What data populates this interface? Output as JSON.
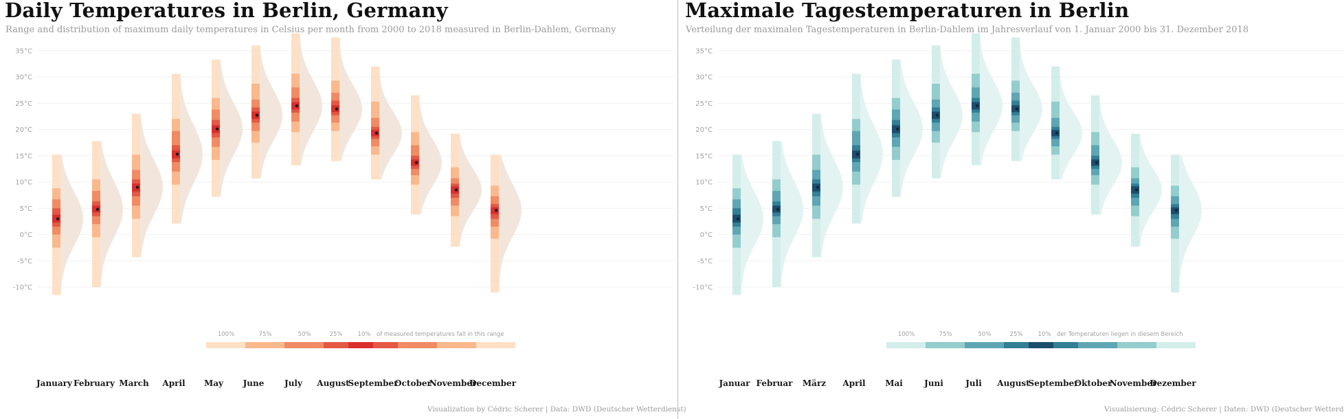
{
  "panels": [
    {
      "title": "Daily Temperatures in Berlin, Germany",
      "subtitle": "Range and distribution of maximum daily temperatures in Celsius per month from 2000 to 2018 measured in Berlin-Dahlem, Germany",
      "caption": "Visualization by Cédric Scherer  |  Data: DWD (Deutscher Wetterdienst)",
      "legend": {
        "labels": [
          "100%",
          "75%",
          "50%",
          "25%",
          "10%"
        ],
        "text": "of measured temperatures fall in this range"
      },
      "colors": {
        "ranges": [
          "#fde0c5",
          "#f9b98c",
          "#f08b63",
          "#e45844",
          "#d9302c"
        ],
        "density": "#f2e6dc",
        "median": "#1a1a1a"
      }
    },
    {
      "title": "Maximale Tagestemperaturen in Berlin",
      "subtitle": "Verteilung der maximalen Tagestemperaturen in Berlin-Dahlem im Jahresverlauf von 1. Januar 2000 bis 31. Dezember 2018",
      "caption": "Visualisierung: Cédric Scherer  |  Daten: DWD (Deutscher Wetterdienst)",
      "legend": {
        "labels": [
          "100%",
          "75%",
          "50%",
          "25%",
          "10%"
        ],
        "text": "der Temperaturen liegen in diesem Bereich"
      },
      "colors": {
        "ranges": [
          "#d3eeea",
          "#93cdcd",
          "#5ea6b3",
          "#327f96",
          "#1c4e6e"
        ],
        "density": "#e3f3f1",
        "median": "#0f2a3c"
      }
    }
  ],
  "chart_data": [
    {
      "type": "interval-density",
      "title": "Daily Temperatures in Berlin, Germany",
      "categories": [
        "January",
        "February",
        "March",
        "April",
        "May",
        "June",
        "July",
        "August",
        "September",
        "October",
        "November",
        "December"
      ],
      "y_tick_labels": [
        "-10°C",
        "-5°C",
        "0°C",
        "5°C",
        "10°C",
        "15°C",
        "20°C",
        "25°C",
        "30°C",
        "35°C"
      ],
      "ylim": [
        -11.5,
        38.5
      ],
      "grid": true,
      "interval_levels": [
        "100%",
        "75%",
        "50%",
        "25%",
        "10%"
      ],
      "series": [
        {
          "category": "January",
          "median": 3,
          "intervals": {
            "100%": [
              -11.5,
              15.2
            ],
            "75%": [
              -2.5,
              8.8
            ],
            "50%": [
              0,
              6.7
            ],
            "25%": [
              1.5,
              5
            ],
            "10%": [
              2.3,
              3.8
            ]
          }
        },
        {
          "category": "February",
          "median": 4.8,
          "intervals": {
            "100%": [
              -10,
              17.8
            ],
            "75%": [
              -0.5,
              10.5
            ],
            "50%": [
              2,
              8.3
            ],
            "25%": [
              3.5,
              6.3
            ],
            "10%": [
              4.2,
              5.5
            ]
          }
        },
        {
          "category": "March",
          "median": 9,
          "intervals": {
            "100%": [
              -4.3,
              23
            ],
            "75%": [
              3,
              15.2
            ],
            "50%": [
              5.5,
              12.3
            ],
            "25%": [
              7.3,
              10.5
            ],
            "10%": [
              8.2,
              9.7
            ]
          }
        },
        {
          "category": "April",
          "median": 15.3,
          "intervals": {
            "100%": [
              2.1,
              30.6
            ],
            "75%": [
              9.5,
              22
            ],
            "50%": [
              12,
              19.7
            ],
            "25%": [
              13.8,
              17
            ],
            "10%": [
              14.5,
              16
            ]
          }
        },
        {
          "category": "May",
          "median": 20.1,
          "intervals": {
            "100%": [
              7.2,
              33.3
            ],
            "75%": [
              14.2,
              26
            ],
            "50%": [
              16.7,
              23.8
            ],
            "25%": [
              18.5,
              21.8
            ],
            "10%": [
              19.3,
              20.8
            ]
          }
        },
        {
          "category": "June",
          "median": 22.7,
          "intervals": {
            "100%": [
              10.7,
              36
            ],
            "75%": [
              17.5,
              28.7
            ],
            "50%": [
              19.7,
              25.7
            ],
            "25%": [
              21.3,
              24.2
            ],
            "10%": [
              22,
              23.4
            ]
          }
        },
        {
          "category": "July",
          "median": 24.5,
          "intervals": {
            "100%": [
              13.2,
              38.3
            ],
            "75%": [
              19.5,
              30.6
            ],
            "50%": [
              21.5,
              28
            ],
            "25%": [
              23.2,
              26
            ],
            "10%": [
              23.8,
              25.2
            ]
          }
        },
        {
          "category": "August",
          "median": 23.9,
          "intervals": {
            "100%": [
              14,
              37.5
            ],
            "75%": [
              19.7,
              29.3
            ],
            "50%": [
              21.3,
              27
            ],
            "25%": [
              22.7,
              25.5
            ],
            "10%": [
              23.3,
              24.6
            ]
          }
        },
        {
          "category": "September",
          "median": 19.3,
          "intervals": {
            "100%": [
              10.5,
              32
            ],
            "75%": [
              15.2,
              25.3
            ],
            "50%": [
              16.8,
              22.2
            ],
            "25%": [
              18.2,
              20.5
            ],
            "10%": [
              18.7,
              19.9
            ]
          }
        },
        {
          "category": "October",
          "median": 13.7,
          "intervals": {
            "100%": [
              3.8,
              26.5
            ],
            "75%": [
              9.5,
              19.5
            ],
            "50%": [
              11.3,
              17
            ],
            "25%": [
              12.5,
              15
            ],
            "10%": [
              13.1,
              14.3
            ]
          }
        },
        {
          "category": "November",
          "median": 8.5,
          "intervals": {
            "100%": [
              -2.3,
              19.2
            ],
            "75%": [
              3.5,
              12.8
            ],
            "50%": [
              5.5,
              10.7
            ],
            "25%": [
              7,
              9.7
            ],
            "10%": [
              7.8,
              9.2
            ]
          }
        },
        {
          "category": "December",
          "median": 4.6,
          "intervals": {
            "100%": [
              -11,
              15.2
            ],
            "75%": [
              -0.8,
              9.3
            ],
            "50%": [
              1.5,
              7.3
            ],
            "25%": [
              3,
              5.8
            ],
            "10%": [
              3.9,
              5.2
            ]
          }
        }
      ]
    },
    {
      "type": "interval-density",
      "title": "Maximale Tagestemperaturen in Berlin",
      "categories": [
        "Januar",
        "Februar",
        "März",
        "April",
        "Mai",
        "Juni",
        "Juli",
        "August",
        "September",
        "Oktober",
        "November",
        "Dezember"
      ],
      "y_tick_labels": [
        "-10°C",
        "-5°C",
        "0°C",
        "5°C",
        "10°C",
        "15°C",
        "20°C",
        "25°C",
        "30°C",
        "35°C"
      ],
      "ylim": [
        -11.5,
        38.5
      ],
      "grid": true,
      "interval_levels": [
        "100%",
        "75%",
        "50%",
        "25%",
        "10%"
      ],
      "series": [
        {
          "category": "Januar",
          "median": 3,
          "intervals": {
            "100%": [
              -11.5,
              15.2
            ],
            "75%": [
              -2.5,
              8.8
            ],
            "50%": [
              0,
              6.7
            ],
            "25%": [
              1.5,
              5
            ],
            "10%": [
              2.3,
              3.8
            ]
          }
        },
        {
          "category": "Februar",
          "median": 4.8,
          "intervals": {
            "100%": [
              -10,
              17.8
            ],
            "75%": [
              -0.5,
              10.5
            ],
            "50%": [
              2,
              8.3
            ],
            "25%": [
              3.5,
              6.3
            ],
            "10%": [
              4.2,
              5.5
            ]
          }
        },
        {
          "category": "März",
          "median": 9,
          "intervals": {
            "100%": [
              -4.3,
              23
            ],
            "75%": [
              3,
              15.2
            ],
            "50%": [
              5.5,
              12.3
            ],
            "25%": [
              7.3,
              10.5
            ],
            "10%": [
              8.2,
              9.7
            ]
          }
        },
        {
          "category": "April",
          "median": 15.3,
          "intervals": {
            "100%": [
              2.1,
              30.6
            ],
            "75%": [
              9.5,
              22
            ],
            "50%": [
              12,
              19.7
            ],
            "25%": [
              13.8,
              17
            ],
            "10%": [
              14.5,
              16
            ]
          }
        },
        {
          "category": "Mai",
          "median": 20.1,
          "intervals": {
            "100%": [
              7.2,
              33.3
            ],
            "75%": [
              14.2,
              26
            ],
            "50%": [
              16.7,
              23.8
            ],
            "25%": [
              18.5,
              21.8
            ],
            "10%": [
              19.3,
              20.8
            ]
          }
        },
        {
          "category": "Juni",
          "median": 22.7,
          "intervals": {
            "100%": [
              10.7,
              36
            ],
            "75%": [
              17.5,
              28.7
            ],
            "50%": [
              19.7,
              25.7
            ],
            "25%": [
              21.3,
              24.2
            ],
            "10%": [
              22,
              23.4
            ]
          }
        },
        {
          "category": "Juli",
          "median": 24.5,
          "intervals": {
            "100%": [
              13.2,
              38.3
            ],
            "75%": [
              19.5,
              30.6
            ],
            "50%": [
              21.5,
              28
            ],
            "25%": [
              23.2,
              26
            ],
            "10%": [
              23.8,
              25.2
            ]
          }
        },
        {
          "category": "August",
          "median": 23.9,
          "intervals": {
            "100%": [
              14,
              37.5
            ],
            "75%": [
              19.7,
              29.3
            ],
            "50%": [
              21.3,
              27
            ],
            "25%": [
              22.7,
              25.5
            ],
            "10%": [
              23.3,
              24.6
            ]
          }
        },
        {
          "category": "September",
          "median": 19.3,
          "intervals": {
            "100%": [
              10.5,
              32
            ],
            "75%": [
              15.2,
              25.3
            ],
            "50%": [
              16.8,
              22.2
            ],
            "25%": [
              18.2,
              20.5
            ],
            "10%": [
              18.7,
              19.9
            ]
          }
        },
        {
          "category": "Oktober",
          "median": 13.7,
          "intervals": {
            "100%": [
              3.8,
              26.5
            ],
            "75%": [
              9.5,
              19.5
            ],
            "50%": [
              11.3,
              17
            ],
            "25%": [
              12.5,
              15
            ],
            "10%": [
              13.1,
              14.3
            ]
          }
        },
        {
          "category": "November",
          "median": 8.5,
          "intervals": {
            "100%": [
              -2.3,
              19.2
            ],
            "75%": [
              3.5,
              12.8
            ],
            "50%": [
              5.5,
              10.7
            ],
            "25%": [
              7,
              9.7
            ],
            "10%": [
              7.8,
              9.2
            ]
          }
        },
        {
          "category": "Dezember",
          "median": 4.6,
          "intervals": {
            "100%": [
              -11,
              15.2
            ],
            "75%": [
              -0.8,
              9.3
            ],
            "50%": [
              1.5,
              7.3
            ],
            "25%": [
              3,
              5.8
            ],
            "10%": [
              3.9,
              5.2
            ]
          }
        }
      ]
    }
  ]
}
